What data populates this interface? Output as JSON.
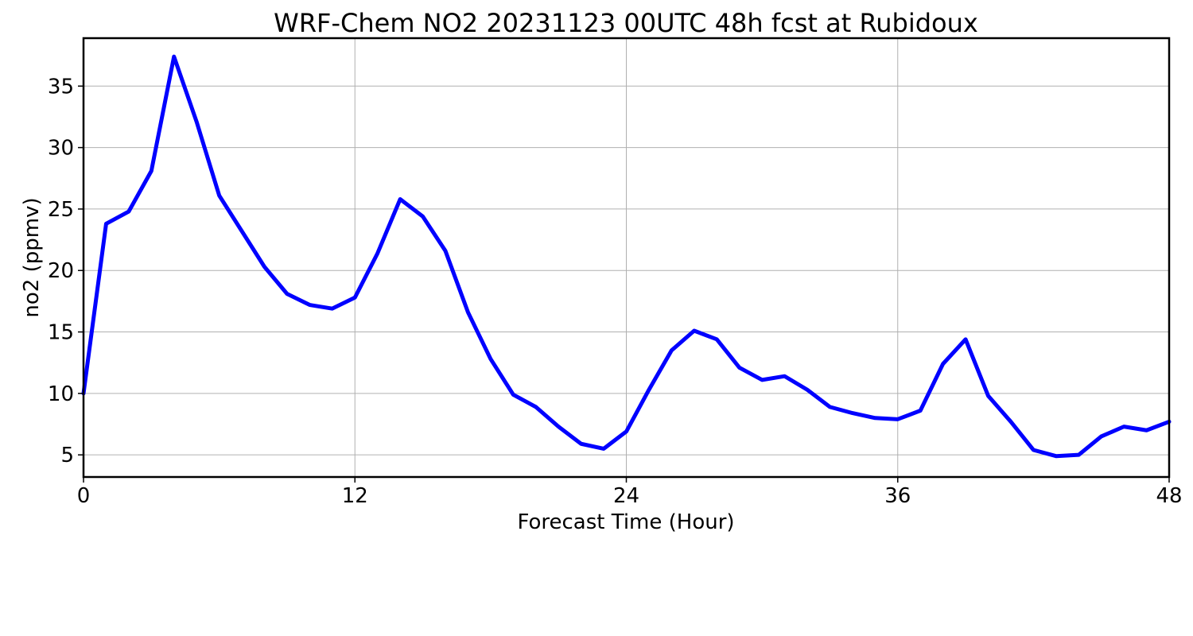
{
  "chart_data": {
    "type": "line",
    "title": "WRF-Chem NO2  20231123 00UTC 48h fcst at Rubidoux",
    "xlabel": "Forecast Time (Hour)",
    "ylabel": "no2  (ppmv)",
    "xlim": [
      0,
      48
    ],
    "ylim": [
      3.2,
      38.9
    ],
    "xticks": [
      0,
      12,
      24,
      36,
      48
    ],
    "yticks": [
      5,
      10,
      15,
      20,
      25,
      30,
      35
    ],
    "grid": true,
    "line_color": "#0000ff",
    "series": [
      {
        "x": [
          0,
          1,
          2,
          3,
          4,
          5,
          6,
          7,
          8,
          9,
          10,
          11,
          12,
          13,
          14,
          15,
          16,
          17,
          18,
          19,
          20,
          21,
          22,
          23,
          24,
          25,
          26,
          27,
          28,
          29,
          30,
          31,
          32,
          33,
          34,
          35,
          36,
          37,
          38,
          39,
          40,
          41,
          42,
          43,
          44,
          45,
          46,
          47,
          48
        ],
        "values": [
          10.0,
          23.8,
          24.8,
          28.1,
          37.4,
          32.1,
          26.1,
          23.2,
          20.3,
          18.1,
          17.2,
          16.9,
          17.8,
          21.4,
          25.8,
          24.4,
          21.6,
          16.6,
          12.8,
          9.9,
          8.9,
          7.3,
          5.9,
          5.5,
          6.9,
          10.3,
          13.5,
          15.1,
          14.4,
          12.1,
          11.1,
          11.4,
          10.3,
          8.9,
          8.4,
          8.0,
          7.9,
          8.6,
          12.4,
          14.4,
          9.8,
          7.7,
          5.4,
          4.9,
          5.0,
          6.5,
          7.3,
          7.0,
          7.7
        ]
      }
    ]
  }
}
